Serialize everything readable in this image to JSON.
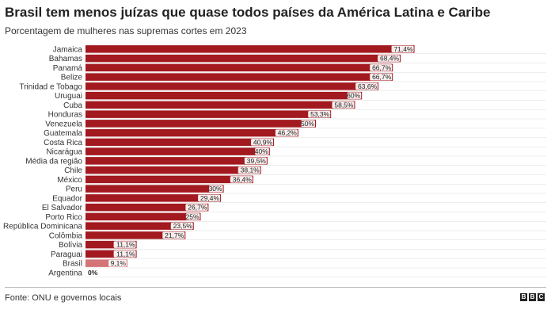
{
  "header": {
    "title": "Brasil tem menos juízas que quase todos países da América Latina e Caribe",
    "subtitle": "Porcentagem de mulheres nas supremas cortes em 2023"
  },
  "footer": {
    "source": "Fonte: ONU e governos locais",
    "logo_letters": [
      "B",
      "B",
      "C"
    ]
  },
  "colors": {
    "bar": "#a2191f",
    "highlight": "#d47477",
    "label_bg": "#ffffff",
    "grid": "#dddddd"
  },
  "chart_data": {
    "type": "bar",
    "orientation": "horizontal",
    "title": "Brasil tem menos juízas que quase todos países da América Latina e Caribe",
    "subtitle": "Porcentagem de mulheres nas supremas cortes em 2023",
    "xlim": [
      0,
      100
    ],
    "grid": true,
    "categories": [
      "Jamaica",
      "Bahamas",
      "Panamá",
      "Belize",
      "Trinidad e Tobago",
      "Uruguai",
      "Cuba",
      "Honduras",
      "Venezuela",
      "Guatemala",
      "Costa Rica",
      "Nicarágua",
      "Média da região",
      "Chile",
      "México",
      "Peru",
      "Equador",
      "El Salvador",
      "Porto Rico",
      "República Dominicana",
      "Colômbia",
      "Bolívia",
      "Paraguai",
      "Brasil",
      "Argentina"
    ],
    "values": [
      71.4,
      68.4,
      66.7,
      66.7,
      63.6,
      60,
      58.5,
      53.3,
      50,
      46.2,
      40.9,
      40,
      39.5,
      38.1,
      36.4,
      30,
      29.4,
      26.7,
      25,
      23.5,
      21.7,
      11.1,
      11.1,
      9.1,
      0
    ],
    "labels": [
      "71,4%",
      "68,4%",
      "66,7%",
      "66,7%",
      "63,6%",
      "60%",
      "58,5%",
      "53,3%",
      "50%",
      "46,2%",
      "40,9%",
      "40%",
      "39,5%",
      "38,1%",
      "36,4%",
      "30%",
      "29,4%",
      "26,7%",
      "25%",
      "23,5%",
      "21,7%",
      "11,1%",
      "11,1%",
      "9,1%",
      "0%"
    ],
    "highlight_category": "Brasil"
  }
}
